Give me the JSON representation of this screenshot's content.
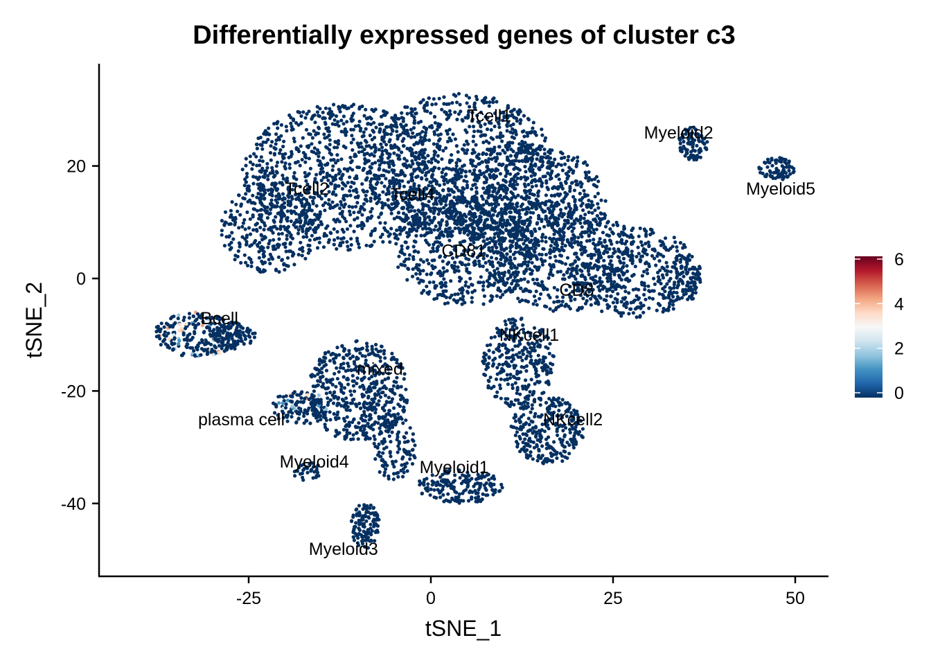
{
  "chart_data": {
    "type": "scatter",
    "title": "Differentially expressed genes of cluster c3",
    "xlabel": "tSNE_1",
    "ylabel": "tSNE_2",
    "xlim": [
      -45,
      55
    ],
    "ylim": [
      -53,
      38
    ],
    "xticks": [
      -25,
      0,
      25,
      50
    ],
    "yticks": [
      -40,
      -20,
      0,
      20
    ],
    "xtick_labels": [
      "-25",
      "0",
      "25",
      "50"
    ],
    "ytick_labels": [
      "-40",
      "-20",
      "0",
      "20"
    ],
    "grid": false,
    "legend": {
      "position": "right",
      "type": "colorbar",
      "range": [
        0,
        6
      ],
      "ticks": [
        0,
        2,
        4,
        6
      ],
      "tick_labels": [
        "0",
        "2",
        "4",
        "6"
      ],
      "colors": [
        "#053061",
        "#2166ac",
        "#4393c3",
        "#92c5de",
        "#d1e5f0",
        "#f7f7f7",
        "#fddbc7",
        "#f4a582",
        "#d6604d",
        "#b2182b",
        "#67001f"
      ]
    },
    "clusters": [
      {
        "label": "Tcell1",
        "x": 8,
        "y": 29
      },
      {
        "label": "Myeloid2",
        "x": 34,
        "y": 26
      },
      {
        "label": "Tcell2",
        "x": -17,
        "y": 16
      },
      {
        "label": "Tcell4",
        "x": -2.5,
        "y": 15
      },
      {
        "label": "Myeloid5",
        "x": 48,
        "y": 16
      },
      {
        "label": "CD81",
        "x": 4.5,
        "y": 5
      },
      {
        "label": "CD8",
        "x": 20,
        "y": -2
      },
      {
        "label": "Bcell",
        "x": -29,
        "y": -7
      },
      {
        "label": "NKcell1",
        "x": 13.5,
        "y": -10
      },
      {
        "label": "mixed",
        "x": -7,
        "y": -16
      },
      {
        "label": "plasma cell",
        "x": -26,
        "y": -25
      },
      {
        "label": "NKcell2",
        "x": 19.5,
        "y": -25
      },
      {
        "label": "Myeloid4",
        "x": -16,
        "y": -32.5
      },
      {
        "label": "Myeloid1",
        "x": 3.2,
        "y": -33.5
      },
      {
        "label": "Myeloid3",
        "x": -12,
        "y": -48
      }
    ],
    "regions": [
      {
        "cx": -12,
        "cy": 18,
        "rx": 14,
        "ry": 13,
        "n": 1000
      },
      {
        "cx": 4,
        "cy": 20,
        "rx": 13,
        "ry": 13,
        "n": 900
      },
      {
        "cx": 13,
        "cy": 14,
        "rx": 11,
        "ry": 10,
        "n": 600
      },
      {
        "cx": 5,
        "cy": 5,
        "rx": 10,
        "ry": 10,
        "n": 600
      },
      {
        "cx": 18,
        "cy": 4,
        "rx": 10,
        "ry": 10,
        "n": 550
      },
      {
        "cx": 28,
        "cy": 1,
        "rx": 9,
        "ry": 8,
        "n": 400
      },
      {
        "cx": 34,
        "cy": 0,
        "rx": 3,
        "ry": 5,
        "n": 90
      },
      {
        "cx": -22,
        "cy": 9,
        "rx": 7,
        "ry": 8,
        "n": 300
      },
      {
        "cx": -32,
        "cy": -10,
        "rx": 6,
        "ry": 4,
        "n": 250
      },
      {
        "cx": -27,
        "cy": -10,
        "rx": 3,
        "ry": 2.5,
        "n": 80
      },
      {
        "cx": -10,
        "cy": -20,
        "rx": 7,
        "ry": 9,
        "n": 500
      },
      {
        "cx": -5,
        "cy": -30,
        "rx": 3,
        "ry": 6,
        "n": 120
      },
      {
        "cx": 12,
        "cy": -15,
        "rx": 5,
        "ry": 8,
        "n": 300
      },
      {
        "cx": 16,
        "cy": -27,
        "rx": 5,
        "ry": 6,
        "n": 280
      },
      {
        "cx": 4,
        "cy": -37,
        "rx": 6,
        "ry": 3,
        "n": 180
      },
      {
        "cx": -18,
        "cy": -23,
        "rx": 4,
        "ry": 3,
        "n": 120
      },
      {
        "cx": -9,
        "cy": -44,
        "rx": 2,
        "ry": 4,
        "n": 120
      },
      {
        "cx": -17,
        "cy": -34,
        "rx": 2,
        "ry": 2,
        "n": 30
      },
      {
        "cx": 36,
        "cy": 24,
        "rx": 2,
        "ry": 3,
        "n": 90
      },
      {
        "cx": 47.5,
        "cy": 19.5,
        "rx": 2.5,
        "ry": 2,
        "n": 80
      }
    ]
  }
}
